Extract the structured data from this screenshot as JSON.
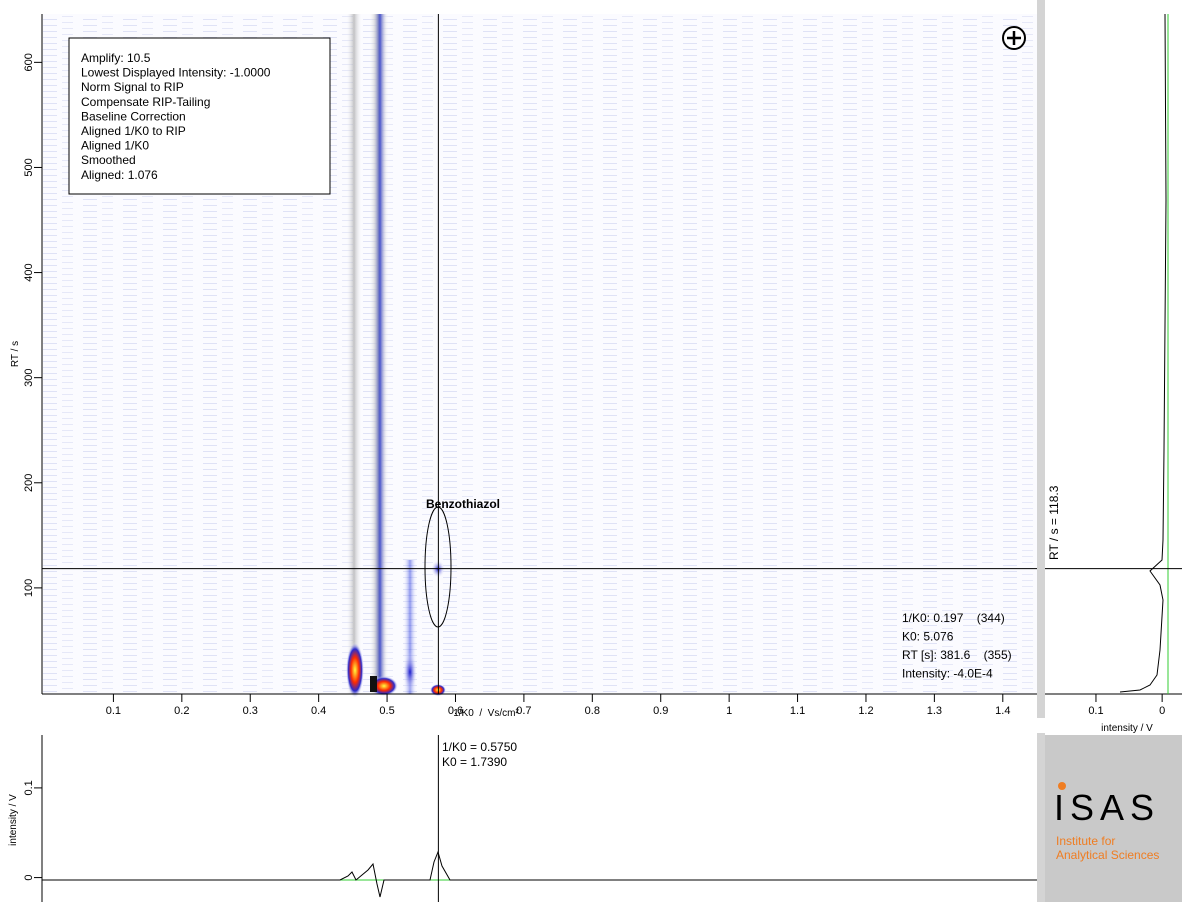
{
  "main_plot": {
    "x_label": "1/K0  /  Vs/cm²",
    "y_label": "RT / s",
    "xlim": [
      0,
      1.45
    ],
    "ylim": [
      0,
      646
    ],
    "xticks": [
      0.1,
      0.2,
      0.3,
      0.4,
      0.5,
      0.6,
      0.7,
      0.8,
      0.9,
      1,
      1.1,
      1.2,
      1.3,
      1.4
    ],
    "yticks": [
      100,
      200,
      300,
      400,
      500,
      600
    ],
    "annotation": "Benzothiazol",
    "crosshair": {
      "x": 0.575,
      "y": 118.3
    },
    "settings_box": [
      "Amplify: 10.5",
      "Lowest Displayed Intensity: -1.0000",
      "Norm Signal to RIP",
      "Compensate RIP-Tailing",
      "Baseline Correction",
      "Aligned 1/K0 to RIP",
      "Aligned 1/K0",
      "Smoothed",
      "Aligned: 1.076"
    ],
    "readout": [
      "1/K0: 0.197    (344)",
      "K0: 5.076",
      "RT [s]: 381.6    (355)",
      "Intensity: -4.0E-4"
    ]
  },
  "right_panel": {
    "label": "RT / s = 118.3",
    "x_label": "intensity / V",
    "xlim": [
      0.177,
      -0.03
    ],
    "xticks": [
      0.1,
      0
    ]
  },
  "bottom_panel": {
    "y_label": "intensity / V",
    "ylim": [
      -0.025,
      0.159
    ],
    "yticks": [
      0,
      0.1
    ],
    "readout": [
      "1/K0 = 0.5750",
      "K0 = 1.7390"
    ]
  },
  "logo": {
    "name": "ISAS",
    "subtitle": [
      "Institute for",
      "Analytical Sciences"
    ]
  }
}
